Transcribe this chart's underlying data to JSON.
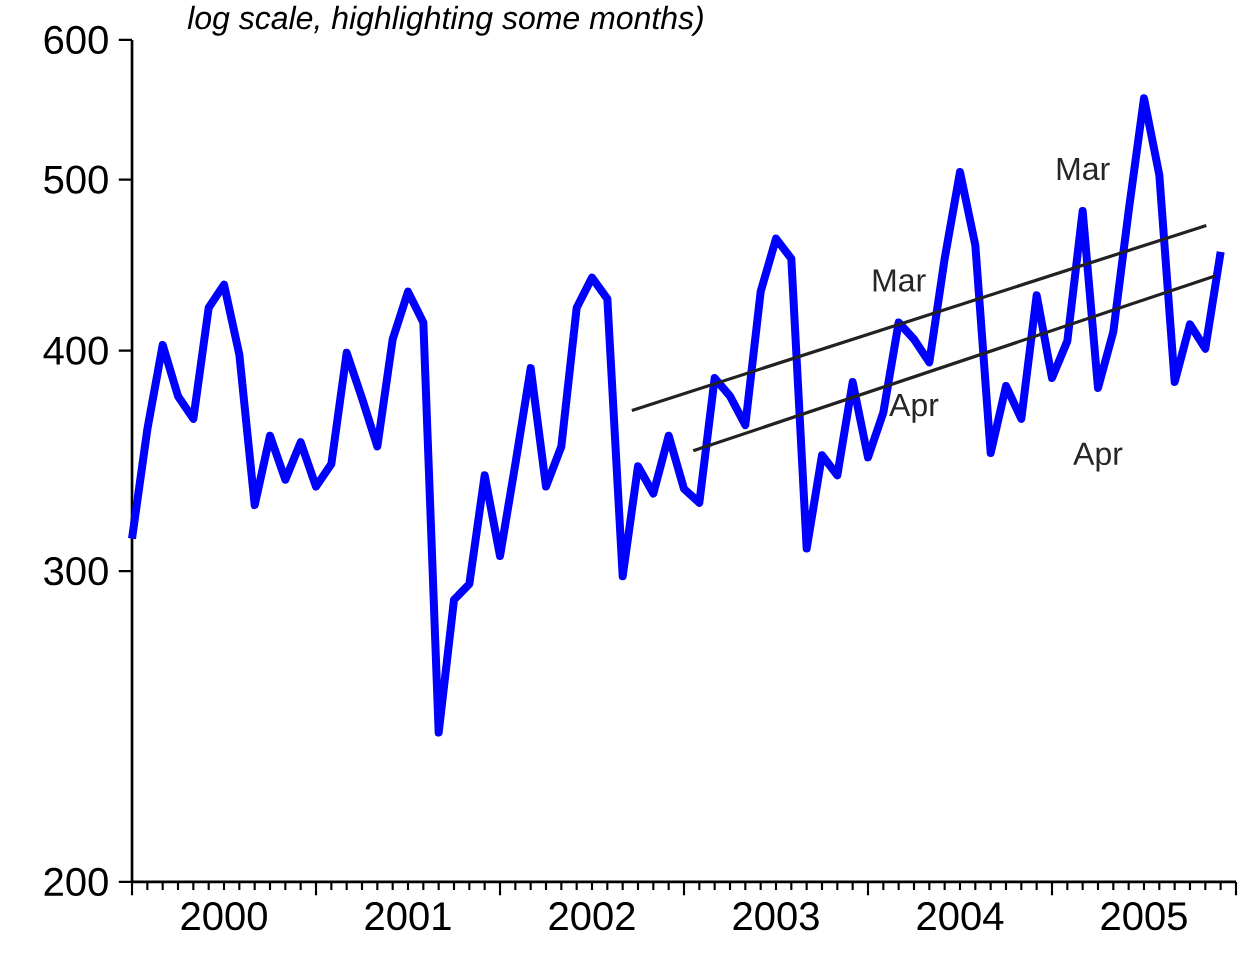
{
  "chart_data": {
    "type": "line",
    "subtitle": "log scale, highlighting some months)",
    "x": [
      "2000-01",
      "2000-02",
      "2000-03",
      "2000-04",
      "2000-05",
      "2000-06",
      "2000-07",
      "2000-08",
      "2000-09",
      "2000-10",
      "2000-11",
      "2000-12",
      "2001-01",
      "2001-02",
      "2001-03",
      "2001-04",
      "2001-05",
      "2001-06",
      "2001-07",
      "2001-08",
      "2001-09",
      "2001-10",
      "2001-11",
      "2001-12",
      "2002-01",
      "2002-02",
      "2002-03",
      "2002-04",
      "2002-05",
      "2002-06",
      "2002-07",
      "2002-08",
      "2002-09",
      "2002-10",
      "2002-11",
      "2002-12",
      "2003-01",
      "2003-02",
      "2003-03",
      "2003-04",
      "2003-05",
      "2003-06",
      "2003-07",
      "2003-08",
      "2003-09",
      "2003-10",
      "2003-11",
      "2003-12",
      "2004-01",
      "2004-02",
      "2004-03",
      "2004-04",
      "2004-05",
      "2004-06",
      "2004-07",
      "2004-08",
      "2004-09",
      "2004-10",
      "2004-11",
      "2004-12",
      "2005-01",
      "2005-02",
      "2005-03",
      "2005-04",
      "2005-05",
      "2005-06",
      "2005-07",
      "2005-08",
      "2005-09",
      "2005-10",
      "2005-11",
      "2005-12"
    ],
    "series": [
      {
        "color": "#0000ff",
        "values": [
          313,
          361,
          403,
          377,
          366,
          423,
          436,
          398,
          327,
          358,
          338,
          355,
          335,
          345,
          399,
          376,
          353,
          406,
          432,
          415,
          243,
          289,
          295,
          340,
          306,
          345,
          391,
          335,
          353,
          423,
          440,
          428,
          298,
          344,
          332,
          358,
          334,
          328,
          386,
          377,
          363,
          432,
          463,
          451,
          309,
          349,
          340,
          384,
          348,
          369,
          415,
          406,
          394,
          451,
          505,
          459,
          350,
          382,
          366,
          430,
          386,
          405,
          480,
          381,
          410,
          480,
          556,
          503,
          384,
          414,
          401,
          455
        ]
      },
      {
        "type": "line",
        "color": "#222222",
        "x": [
          "2002-09-19",
          "2005-11-03"
        ],
        "values": [
          370,
          471
        ]
      },
      {
        "type": "line",
        "color": "#222222",
        "x": [
          "2003-01-19",
          "2005-11-20"
        ],
        "values": [
          351,
          441
        ]
      }
    ],
    "log": "y",
    "ylim": [
      200,
      600
    ],
    "yticks": [
      200,
      300,
      400,
      500,
      600
    ],
    "xlim": [
      "2000-01",
      "2006-01"
    ],
    "xticks": [
      {
        "value": "2000-01",
        "label": null
      },
      {
        "value": "2001-01",
        "label": null
      },
      {
        "value": "2002-01",
        "label": null
      },
      {
        "value": "2003-01",
        "label": null
      },
      {
        "value": "2004-01",
        "label": null
      },
      {
        "value": "2005-01",
        "label": null
      },
      {
        "value": "2006-01",
        "label": null
      },
      {
        "value": "2000-07",
        "label": "2000"
      },
      {
        "value": "2001-07",
        "label": "2001"
      },
      {
        "value": "2002-07",
        "label": "2002"
      },
      {
        "value": "2003-07",
        "label": "2003"
      },
      {
        "value": "2004-07",
        "label": "2004"
      },
      {
        "value": "2005-07",
        "label": "2005"
      }
    ],
    "annotations": [
      {
        "text": "Mar",
        "x": "2004-03",
        "y": 415
      },
      {
        "text": "Apr",
        "x": "2004-04",
        "y": 406
      },
      {
        "text": "Mar",
        "x": "2005-03",
        "y": 480
      },
      {
        "text": "Apr",
        "x": "2005-04",
        "y": 381
      }
    ]
  }
}
